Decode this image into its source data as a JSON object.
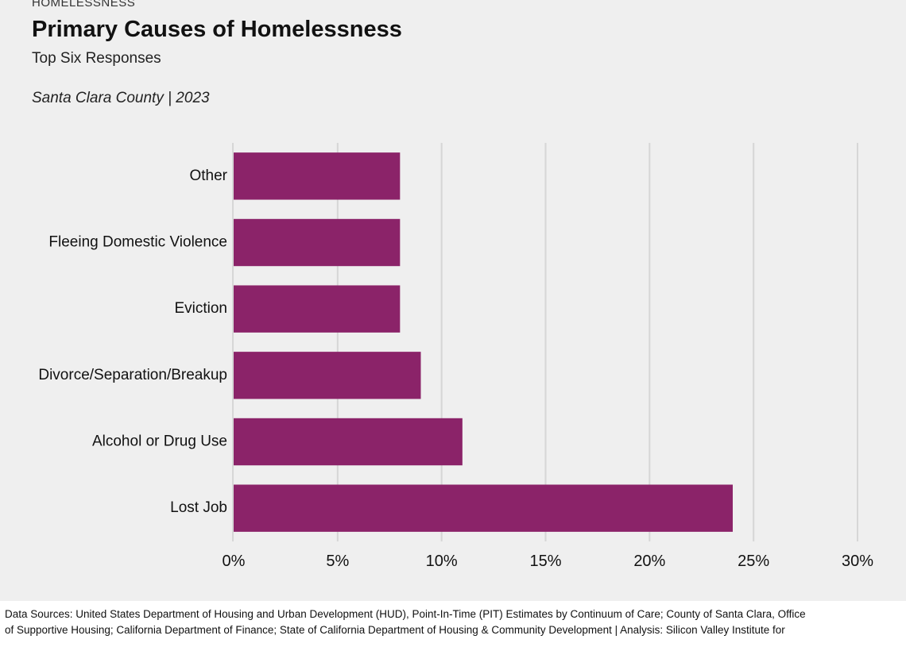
{
  "header": {
    "kicker": "HOMELESSNESS",
    "title": "Primary Causes of Homelessness",
    "subtitle": "Top Six Responses",
    "location_year": "Santa Clara County | 2023"
  },
  "chart_data": {
    "type": "bar",
    "orientation": "horizontal",
    "categories": [
      "Other",
      "Fleeing Domestic Violence",
      "Eviction",
      "Divorce/Separation/Breakup",
      "Alcohol or Drug Use",
      "Lost Job"
    ],
    "values": [
      8,
      8,
      8,
      9,
      11,
      24
    ],
    "value_unit": "%",
    "xlim": [
      0,
      30
    ],
    "xticks": [
      "0%",
      "5%",
      "10%",
      "15%",
      "20%",
      "25%",
      "30%"
    ],
    "grid": true,
    "bar_color": "#8b2369"
  },
  "footer": {
    "line1": "Data Sources: United States Department of Housing and Urban Development (HUD), Point-In-Time (PIT) Estimates by Continuum of Care; County of Santa Clara, Office",
    "line2": "of Supportive Housing; California Department of Finance; State of California Department of Housing & Community Development  |  Analysis: Silicon Valley Institute for"
  }
}
